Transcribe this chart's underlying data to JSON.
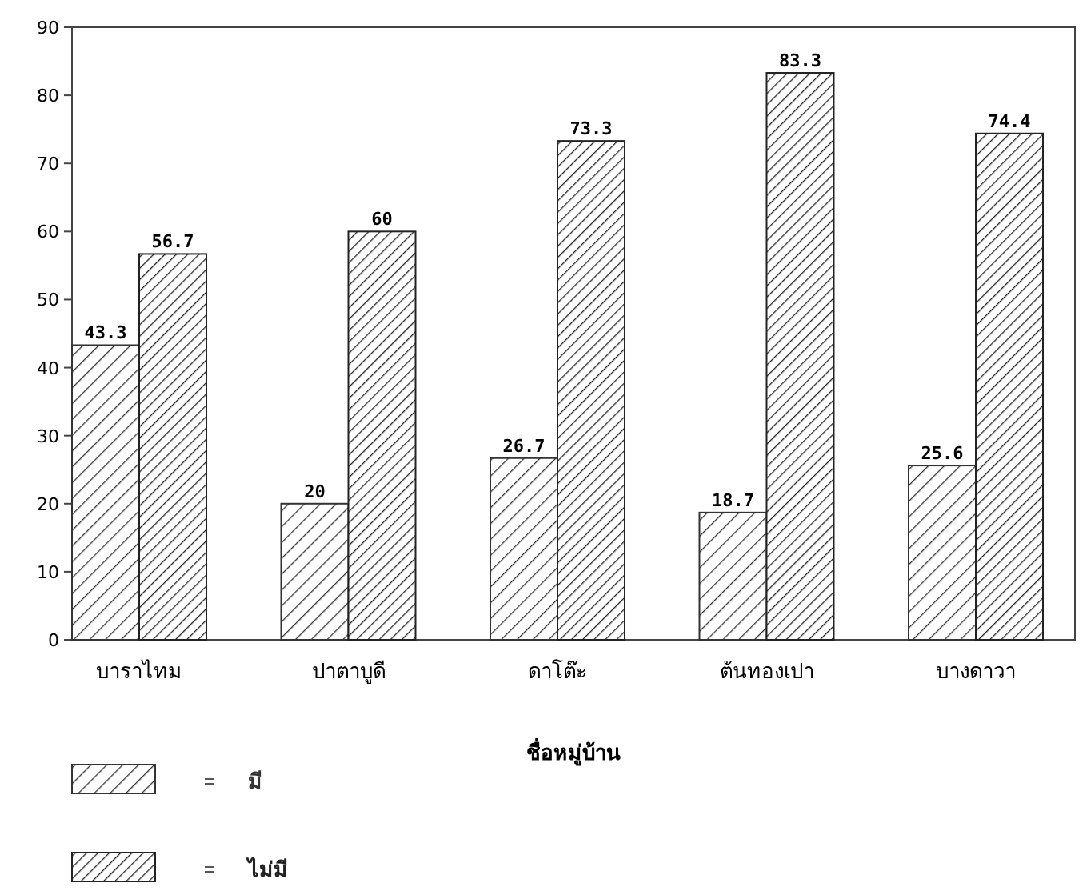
{
  "chart_data": {
    "type": "bar",
    "xlabel": "ชื่อหมู่บ้าน",
    "categories": [
      "บาราไทม",
      "ปาตาบูดี",
      "ดาโต๊ะ",
      "ต้นทองเปา",
      "บางดาวา"
    ],
    "series": [
      {
        "name": "มี",
        "color": "#333333",
        "values": [
          43.3,
          20,
          26.7,
          18.7,
          25.6
        ]
      },
      {
        "name": "ไม่มี",
        "color": "#222222",
        "values": [
          56.7,
          60,
          73.3,
          83.3,
          74.4
        ]
      }
    ],
    "ylim": [
      0,
      90
    ],
    "yticks": [
      0,
      10,
      20,
      30,
      40,
      50,
      60,
      70,
      80,
      90
    ],
    "data_labels": true,
    "legend": "bottom left",
    "grid": false
  }
}
